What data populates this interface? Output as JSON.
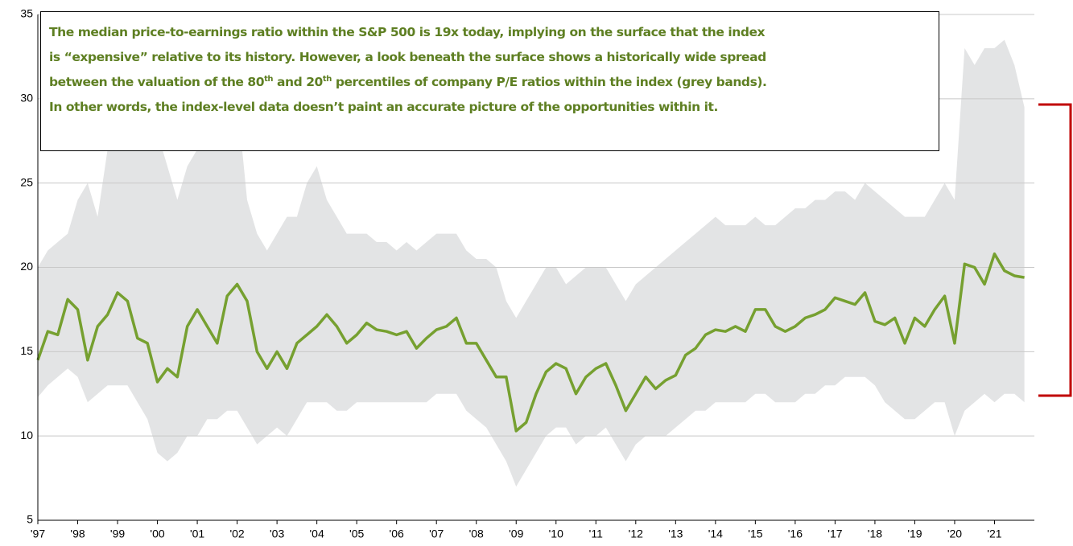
{
  "chart_data": {
    "type": "line",
    "annotation": [
      "The median price-to-earnings ratio within the S&P 500 is 19x today, implying on the surface that the index",
      "is “expensive” relative to its history.  However, a look beneath the surface shows a historically wide spread",
      [
        "between the valuation of the 80",
        "th",
        " and 20",
        "th",
        " percentiles of company P/E ratios within the index (grey bands)."
      ],
      "In other words, the index-level data doesn’t paint an accurate picture of the opportunities within it."
    ],
    "categories": [
      "'97",
      null,
      null,
      null,
      "'98",
      null,
      null,
      null,
      "'99",
      null,
      null,
      null,
      "'00",
      null,
      null,
      null,
      "'01",
      null,
      null,
      null,
      "'02",
      null,
      null,
      null,
      "'03",
      null,
      null,
      null,
      "'04",
      null,
      null,
      null,
      "'05",
      null,
      null,
      null,
      "'06",
      null,
      null,
      null,
      "'07",
      null,
      null,
      null,
      "'08",
      null,
      null,
      null,
      "'09",
      null,
      null,
      null,
      "'10",
      null,
      null,
      null,
      "'11",
      null,
      null,
      null,
      "'12",
      null,
      null,
      null,
      "'13",
      null,
      null,
      null,
      "'14",
      null,
      null,
      null,
      "'15",
      null,
      null,
      null,
      "'16",
      null,
      null,
      null,
      "'17",
      null,
      null,
      null,
      "'18",
      null,
      null,
      null,
      "'19",
      null,
      null,
      null,
      "'20",
      null,
      null,
      null,
      "'21",
      null,
      null,
      null
    ],
    "band": {
      "color": "#e3e4e5",
      "high": [
        20,
        21,
        21.5,
        22,
        24,
        25,
        23,
        27,
        33,
        30,
        27,
        28,
        28,
        26,
        24,
        26,
        27,
        29,
        28,
        30,
        30,
        24,
        22,
        21,
        22,
        23,
        23,
        25,
        26,
        24,
        23,
        22,
        22,
        22,
        21.5,
        21.5,
        21,
        21.5,
        21,
        21.5,
        22,
        22,
        22,
        21,
        20.5,
        20.5,
        20,
        18,
        17,
        18,
        19,
        20,
        20,
        19,
        19.5,
        20,
        20,
        20,
        19,
        18,
        19,
        19.5,
        20,
        20.5,
        21,
        21.5,
        22,
        22.5,
        23,
        22.5,
        22.5,
        22.5,
        23,
        22.5,
        22.5,
        23,
        23.5,
        23.5,
        24,
        24,
        24.5,
        24.5,
        24,
        25,
        24.5,
        24,
        23.5,
        23,
        23,
        23,
        24,
        25,
        24,
        33,
        32,
        33,
        33,
        33.5,
        32,
        29.5
      ],
      "low": [
        12.3,
        13,
        13.5,
        14,
        13.5,
        12,
        12.5,
        13,
        13,
        13,
        12,
        11,
        9,
        8.5,
        9,
        10,
        10,
        11,
        11,
        11.5,
        11.5,
        10.5,
        9.5,
        10,
        10.5,
        10,
        11,
        12,
        12,
        12,
        11.5,
        11.5,
        12,
        12,
        12,
        12,
        12,
        12,
        12,
        12,
        12.5,
        12.5,
        12.5,
        11.5,
        11,
        10.5,
        9.5,
        8.5,
        7,
        8,
        9,
        10,
        10.5,
        10.5,
        9.5,
        10,
        10,
        10.5,
        9.5,
        8.5,
        9.5,
        10,
        10,
        10,
        10.5,
        11,
        11.5,
        11.5,
        12,
        12,
        12,
        12,
        12.5,
        12.5,
        12,
        12,
        12,
        12.5,
        12.5,
        13,
        13,
        13.5,
        13.5,
        13.5,
        13,
        12,
        11.5,
        11,
        11,
        11.5,
        12,
        12,
        10,
        11.5,
        12,
        12.5,
        12,
        12.5,
        12.5,
        12
      ]
    },
    "series": [
      {
        "color": "#76a030",
        "values": [
          14.5,
          16.2,
          16.0,
          18.1,
          17.5,
          14.5,
          16.5,
          17.2,
          18.5,
          18.0,
          15.8,
          15.5,
          13.2,
          14.0,
          13.5,
          16.5,
          17.5,
          16.5,
          15.5,
          18.3,
          19.0,
          18.0,
          15.0,
          14.0,
          15.0,
          14.0,
          15.5,
          16.0,
          16.5,
          17.2,
          16.5,
          15.5,
          16.0,
          16.7,
          16.3,
          16.2,
          16.0,
          16.2,
          15.2,
          15.8,
          16.3,
          16.5,
          17.0,
          15.5,
          15.5,
          14.5,
          13.5,
          13.5,
          10.3,
          10.8,
          12.5,
          13.8,
          14.3,
          14.0,
          12.5,
          13.5,
          14.0,
          14.3,
          13.0,
          11.5,
          12.5,
          13.5,
          12.8,
          13.3,
          13.6,
          14.8,
          15.2,
          16.0,
          16.3,
          16.2,
          16.5,
          16.2,
          17.5,
          17.5,
          16.5,
          16.2,
          16.5,
          17.0,
          17.2,
          17.5,
          18.2,
          18.0,
          17.8,
          18.5,
          16.8,
          16.6,
          17.0,
          15.5,
          17.0,
          16.5,
          17.5,
          18.3,
          15.5,
          20.2,
          20.0,
          19.0,
          20.8,
          19.8,
          19.5,
          19.4
        ]
      }
    ],
    "ylim": [
      5,
      35
    ],
    "yticks": [
      5,
      10,
      15,
      20,
      25,
      30,
      35
    ],
    "grid": true
  }
}
